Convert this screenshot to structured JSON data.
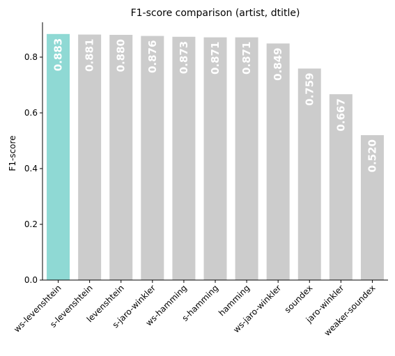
{
  "chart_data": {
    "type": "bar",
    "title": "F1-score comparison (artist, dtitle)",
    "xlabel": "",
    "ylabel": "F1-score",
    "ylim": [
      0,
      0.925
    ],
    "yticks": [
      "0.0",
      "0.2",
      "0.4",
      "0.6",
      "0.8"
    ],
    "categories": [
      "ws-levenshtein",
      "s-levenshtein",
      "levenshtein",
      "s-jaro-winkler",
      "ws-hamming",
      "s-hamming",
      "hamming",
      "ws-jaro-winkler",
      "soundex",
      "jaro-winkler",
      "weaker-soundex"
    ],
    "values": [
      0.883,
      0.881,
      0.88,
      0.876,
      0.873,
      0.871,
      0.871,
      0.849,
      0.759,
      0.667,
      0.52
    ],
    "data_labels": [
      "0.883",
      "0.881",
      "0.880",
      "0.876",
      "0.873",
      "0.871",
      "0.871",
      "0.849",
      "0.759",
      "0.667",
      "0.520"
    ],
    "highlight_index": 0,
    "grid": false,
    "colors": {
      "highlight": "#8fd9d4",
      "default": "#cccccc",
      "label": "#ffffff",
      "axis": "#000000"
    }
  }
}
